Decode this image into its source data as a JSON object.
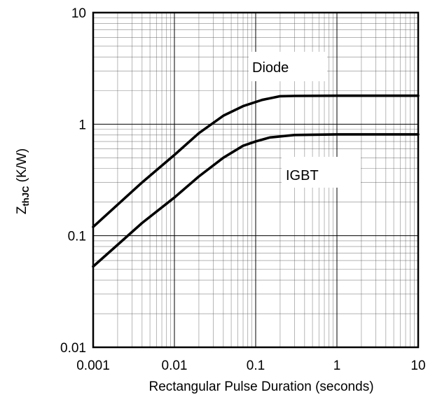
{
  "chart_data": {
    "type": "line",
    "title": "",
    "xlabel": "Rectangular Pulse Duration (seconds)",
    "ylabel_main": "Z",
    "ylabel_sub": "thJC",
    "ylabel_unit": " (K/W)",
    "x_scale": "log",
    "y_scale": "log",
    "xlim": [
      0.001,
      10
    ],
    "ylim": [
      0.01,
      10
    ],
    "x_ticks": [
      {
        "value": 0.001,
        "label": "0.001"
      },
      {
        "value": 0.01,
        "label": "0.01"
      },
      {
        "value": 0.1,
        "label": "0.1"
      },
      {
        "value": 1,
        "label": "1"
      },
      {
        "value": 10,
        "label": "10"
      }
    ],
    "y_ticks": [
      {
        "value": 10,
        "label": "10"
      },
      {
        "value": 1,
        "label": "1"
      },
      {
        "value": 0.1,
        "label": "0.1"
      },
      {
        "value": 0.01,
        "label": "0.01"
      }
    ],
    "grid": true,
    "series": [
      {
        "name": "Diode",
        "x": [
          0.001,
          0.002,
          0.004,
          0.01,
          0.02,
          0.04,
          0.07,
          0.12,
          0.2,
          0.3,
          1,
          3,
          10
        ],
        "y": [
          0.12,
          0.19,
          0.3,
          0.53,
          0.83,
          1.19,
          1.45,
          1.65,
          1.78,
          1.79,
          1.8,
          1.8,
          1.8
        ]
      },
      {
        "name": "IGBT",
        "x": [
          0.001,
          0.002,
          0.004,
          0.01,
          0.02,
          0.04,
          0.07,
          0.1,
          0.15,
          0.3,
          1,
          3,
          10
        ],
        "y": [
          0.053,
          0.083,
          0.13,
          0.22,
          0.34,
          0.5,
          0.64,
          0.7,
          0.76,
          0.8,
          0.81,
          0.81,
          0.81
        ]
      }
    ],
    "annotations": [
      {
        "text": "Diode",
        "series": "Diode"
      },
      {
        "text": "IGBT",
        "series": "IGBT"
      }
    ]
  }
}
